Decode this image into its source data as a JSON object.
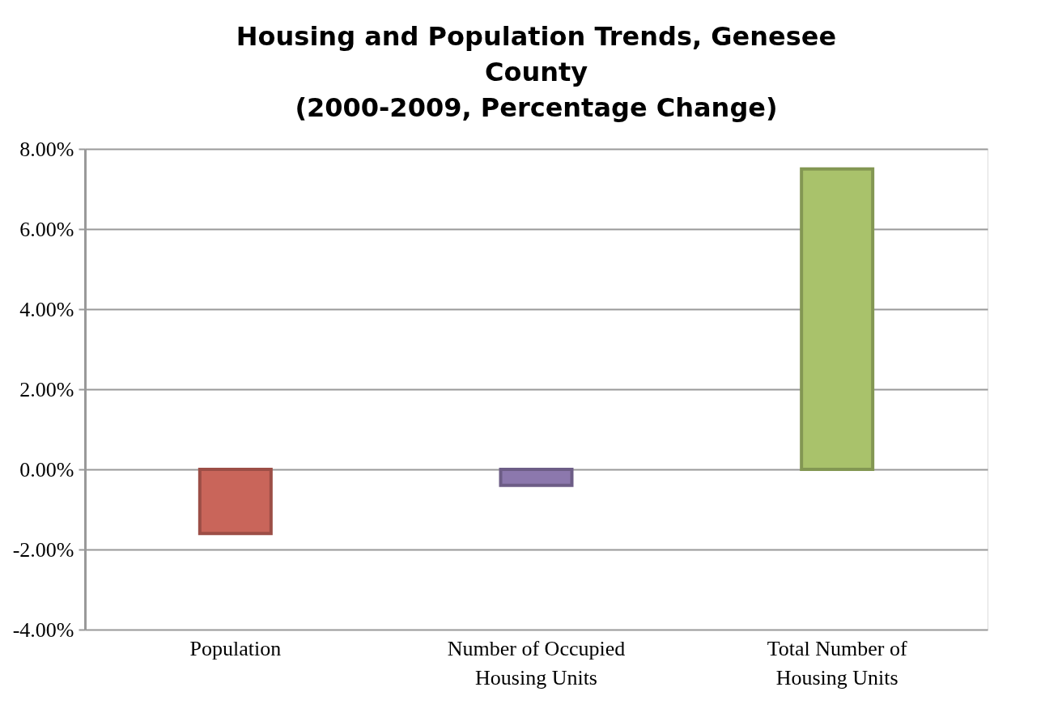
{
  "chart_data": {
    "type": "bar",
    "title": "Housing and Population Trends, Genesee County",
    "subtitle": "(2000-2009, Percentage Change)",
    "categories": [
      "Population",
      "Number of Occupied Housing Units",
      "Total Number of Housing Units"
    ],
    "values": [
      -1.6,
      -0.4,
      7.5
    ],
    "colors": [
      "#c9655a",
      "#8c78ad",
      "#a9c26b"
    ],
    "ylim": [
      -4,
      8
    ],
    "yticks": [
      {
        "value": -4,
        "label": "-4.00%"
      },
      {
        "value": -2,
        "label": "-2.00%"
      },
      {
        "value": 0,
        "label": "0.00%"
      },
      {
        "value": 2,
        "label": "2.00%"
      },
      {
        "value": 4,
        "label": "4.00%"
      },
      {
        "value": 6,
        "label": "6.00%"
      },
      {
        "value": 8,
        "label": "8.00%"
      }
    ],
    "grid": "y"
  }
}
